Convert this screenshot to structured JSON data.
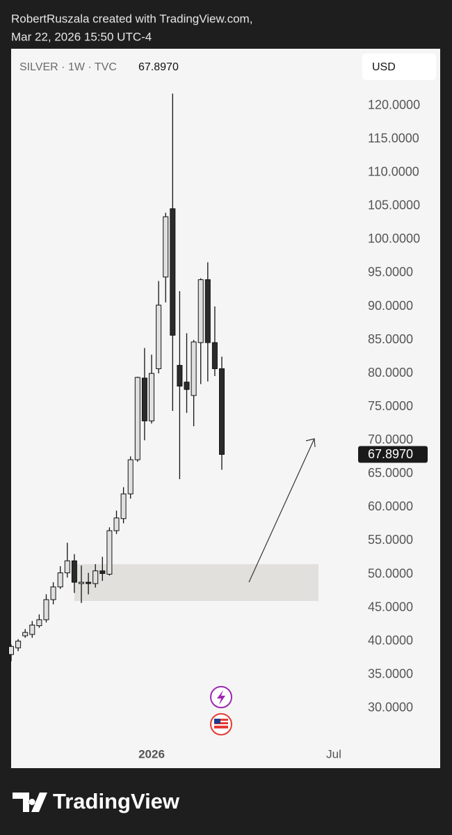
{
  "header": {
    "line1": "RobertRuszala created with TradingView.com,",
    "line2": "Mar 22, 2026 15:50 UTC-4"
  },
  "footer": {
    "brand": "TradingView"
  },
  "chart_data": {
    "type": "candlestick",
    "symbol": "SILVER · 1W · TVC",
    "currency": "USD",
    "last_price": 67.897,
    "last_price_label": "67.8970",
    "time_labels": [
      "2026",
      "Jul"
    ],
    "up_color": "#e0e0e0",
    "down_color": "#2b2b2b",
    "zone": [
      46.0,
      51.5
    ],
    "ylim": [
      25.5,
      128.5
    ],
    "yticks": [
      {
        "value": 30,
        "label": "30.0000"
      },
      {
        "value": 35,
        "label": "35.0000"
      },
      {
        "value": 40,
        "label": "40.0000"
      },
      {
        "value": 45,
        "label": "45.0000"
      },
      {
        "value": 50,
        "label": "50.0000"
      },
      {
        "value": 55,
        "label": "55.0000"
      },
      {
        "value": 60,
        "label": "60.0000"
      },
      {
        "value": 65,
        "label": "65.0000"
      },
      {
        "value": 70,
        "label": "70.0000"
      },
      {
        "value": 75,
        "label": "75.0000"
      },
      {
        "value": 80,
        "label": "80.0000"
      },
      {
        "value": 85,
        "label": "85.0000"
      },
      {
        "value": 90,
        "label": "90.0000"
      },
      {
        "value": 95,
        "label": "95.0000"
      },
      {
        "value": 100,
        "label": "100.0000"
      },
      {
        "value": 105,
        "label": "105.0000"
      },
      {
        "value": 110,
        "label": "110.0000"
      },
      {
        "value": 115,
        "label": "115.0000"
      },
      {
        "value": 120,
        "label": "120.0000"
      }
    ],
    "open": [
      38,
      39,
      40.8,
      41,
      42.3,
      43.2,
      46.2,
      48.1,
      50.2,
      52,
      48.6,
      48.8,
      48.6,
      50.5,
      50,
      56.5,
      58.3,
      62,
      67.1,
      79.3,
      72.9,
      80.7,
      94.4,
      104.6,
      81.2,
      78.7,
      76.7,
      84.6,
      94,
      84.6,
      80.7
    ],
    "high": [
      39.5,
      40.3,
      41.8,
      43,
      44,
      47,
      48.8,
      51.2,
      54.7,
      53,
      51.3,
      50.2,
      51.5,
      52.6,
      57,
      59.5,
      63,
      67.6,
      79.5,
      83.8,
      82.8,
      93.8,
      104,
      121.8,
      92.3,
      86,
      85,
      94.2,
      96.6,
      90,
      82.5
    ],
    "low": [
      37,
      38.5,
      40.5,
      40.5,
      42,
      42.8,
      45.5,
      47.8,
      49.5,
      47.2,
      45.7,
      47,
      48,
      49,
      49.8,
      56,
      57.6,
      61.3,
      66.8,
      70,
      72.5,
      80,
      90.6,
      74.4,
      64.2,
      74.1,
      72.1,
      78.4,
      78.8,
      79.6,
      65.6
    ],
    "close": [
      39.2,
      40,
      41.3,
      42.4,
      43.2,
      46.2,
      48.1,
      50.2,
      52,
      48.8,
      48.8,
      48.6,
      50.5,
      50.1,
      56.5,
      58.4,
      62,
      67.1,
      79.4,
      72.9,
      80,
      90.2,
      103.4,
      85.7,
      78.1,
      77.6,
      84.7,
      94,
      84.6,
      80.7,
      67.897
    ]
  }
}
